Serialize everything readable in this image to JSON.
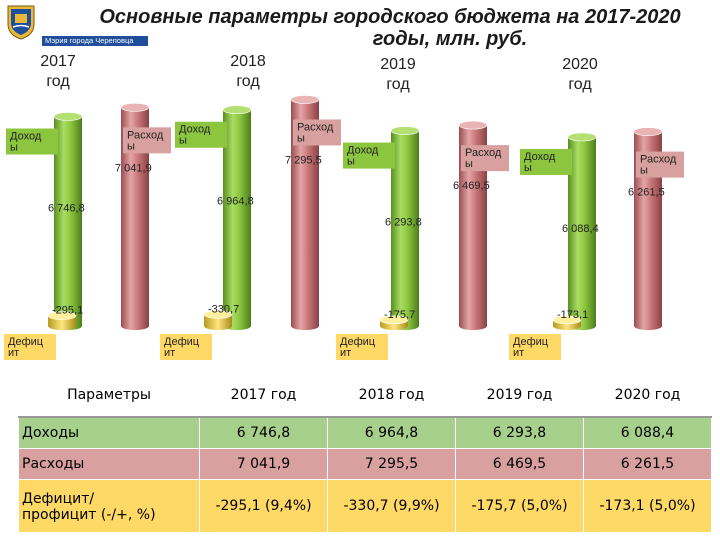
{
  "header": {
    "city_label": "Мэрия города Череповца",
    "title_line1": "Основные параметры городского бюджета на 2017-2020",
    "title_line2": "годы, млн. руб."
  },
  "colors": {
    "income": "#8cc63f",
    "expense": "#c9787a",
    "deficit": "#ffd966",
    "income_label_bg": "#8cc63f",
    "expense_label_bg": "#d9a0a0",
    "crest_blue": "#1f4e9c",
    "crest_gold": "#e8b838"
  },
  "chart_data": {
    "type": "bar",
    "categories": [
      "2017 год",
      "2018 год",
      "2019 год",
      "2020 год"
    ],
    "category_labels": [
      [
        "2017",
        "год"
      ],
      [
        "2018",
        "год"
      ],
      [
        "2019",
        "год"
      ],
      [
        "2020",
        "год"
      ]
    ],
    "series": [
      {
        "name": "Доходы",
        "label_lines": [
          "Доход",
          "ы"
        ],
        "values": [
          6746.8,
          6964.8,
          6293.8,
          6088.4
        ],
        "value_labels": [
          "6 746,8",
          "6 964,8",
          "6 293,8",
          "6 088,4"
        ]
      },
      {
        "name": "Расходы",
        "label_lines": [
          "Расход",
          "ы"
        ],
        "values": [
          7041.9,
          7295.5,
          6469.5,
          6261.5
        ],
        "value_labels": [
          "7 041,9",
          "7 295,5",
          "6 469,5",
          "6 261,5"
        ]
      },
      {
        "name": "Дефицит",
        "label_lines": [
          "Дефиц",
          "ит"
        ],
        "values": [
          -295.1,
          -330.7,
          -175.7,
          -173.1
        ],
        "value_labels": [
          "-295,1",
          "-330,7",
          "-175,7",
          "-173,1"
        ]
      }
    ],
    "style": "3d cylinders"
  },
  "table": {
    "headers": [
      "Параметры",
      "2017 год",
      "2018 год",
      "2019 год",
      "2020 год"
    ],
    "rows": [
      {
        "label": "Доходы",
        "cells": [
          "6 746,8",
          "6 964,8",
          "6 293,8",
          "6 088,4"
        ]
      },
      {
        "label": "Расходы",
        "cells": [
          "7 041,9",
          "7 295,5",
          "6 469,5",
          "6 261,5"
        ]
      },
      {
        "label_lines": [
          "Дефицит/",
          "профицит (-/+, %)"
        ],
        "cells": [
          "-295,1 (9,4%)",
          "-330,7 (9,9%)",
          "-175,7 (5,0%)",
          "-173,1 (5,0%)"
        ]
      }
    ]
  }
}
